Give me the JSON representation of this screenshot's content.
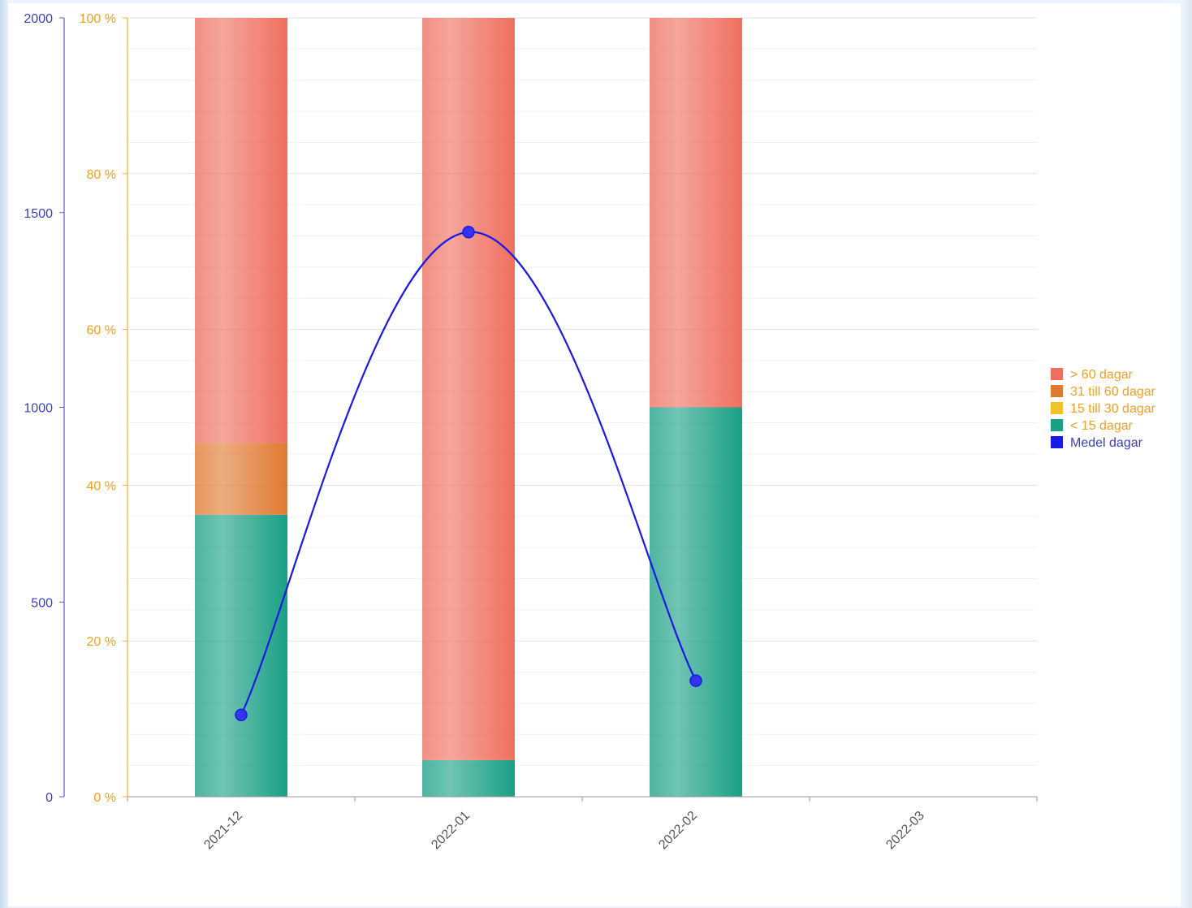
{
  "chart_data": {
    "type": "bar",
    "stacked": true,
    "categories": [
      "2021-12",
      "2022-01",
      "2022-02",
      "2022-03"
    ],
    "series": [
      {
        "name": "< 15 dagar",
        "color": "#1aa085",
        "values": [
          36.2,
          4.7,
          50.0,
          0
        ]
      },
      {
        "name": "15 till 30 dagar",
        "color": "#f0c428",
        "values": [
          0,
          0,
          0,
          0
        ]
      },
      {
        "name": "31 till 60 dagar",
        "color": "#e07a30",
        "values": [
          9.2,
          0,
          0,
          0
        ]
      },
      {
        "name": "> 60 dagar",
        "color": "#ef6f5f",
        "values": [
          54.6,
          95.3,
          50.0,
          0
        ]
      }
    ],
    "line_series": {
      "name": "Medel dagar",
      "color": "#1a1ae6",
      "values": [
        210,
        1450,
        298,
        null
      ]
    },
    "y_left": {
      "ticks": [
        "0",
        "500",
        "1000",
        "1500",
        "2000"
      ],
      "ylim": [
        0,
        2000
      ]
    },
    "y_right": {
      "ticks": [
        "0 %",
        "20 %",
        "40 %",
        "60 %",
        "80 %",
        "100 %"
      ],
      "ylim": [
        0,
        100
      ]
    },
    "legend_order": [
      "> 60 dagar",
      "31 till 60 dagar",
      "15 till 30 dagar",
      "< 15 dagar",
      "Medel dagar"
    ],
    "legend_text_colors": {
      "bars": "#f0a020",
      "line": "#3a3fb8"
    },
    "legend": "right",
    "grid": true
  }
}
